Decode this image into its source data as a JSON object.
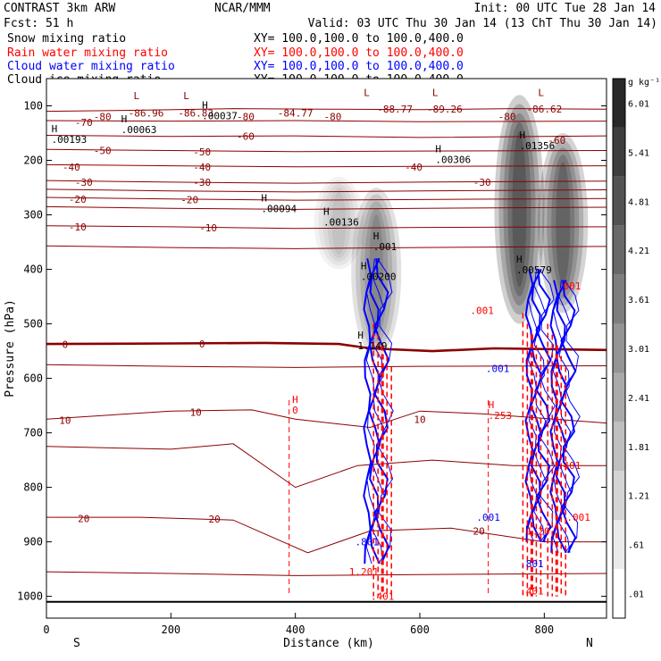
{
  "chart_data": {
    "type": "contour-cross-section",
    "header": {
      "model": "CONTRAST  3km ARW",
      "fcst": "Fcst:   51 h",
      "center": "NCAR/MMM",
      "init": "Init: 00 UTC Tue 28 Jan 14",
      "valid": "Valid: 03 UTC Thu 30 Jan 14 (13 ChT Thu 30 Jan 14)"
    },
    "fields": [
      {
        "name": "Snow mixing ratio",
        "color": "#000000",
        "xy": "XY= 100.0,100.0 to 100.0,400.0"
      },
      {
        "name": "Rain water mixing ratio",
        "color": "#ff0000",
        "xy": "XY= 100.0,100.0 to 100.0,400.0"
      },
      {
        "name": "Cloud water mixing ratio",
        "color": "#0000ff",
        "xy": "XY= 100.0,100.0 to 100.0,400.0"
      },
      {
        "name": "Cloud ice mixing ratio",
        "color": "#000000",
        "xy": "XY= 100.0,100.0 to 100.0,400.0"
      }
    ],
    "xlabel": "Distance (km)",
    "ylabel": "Pressure (hPa)",
    "xlim": [
      0,
      900
    ],
    "ylim": [
      50,
      1040
    ],
    "x_ticks": [
      0,
      200,
      400,
      600,
      800
    ],
    "y_ticks": [
      100,
      200,
      300,
      400,
      500,
      600,
      700,
      800,
      900,
      1000
    ],
    "endpoints": {
      "left": "S",
      "right": "N"
    },
    "colorbar": {
      "units": "g kg⁻¹",
      "labels": [
        "6.01",
        "5.41",
        "4.81",
        "4.21",
        "3.61",
        "3.01",
        "2.41",
        "1.81",
        "1.21",
        ".61",
        ".01"
      ]
    },
    "temperature_contours": [
      {
        "level": -80,
        "points": [
          [
            0,
            110
          ],
          [
            150,
            108
          ],
          [
            300,
            105
          ],
          [
            450,
            106
          ],
          [
            600,
            107
          ],
          [
            750,
            105
          ],
          [
            900,
            106
          ]
        ]
      },
      {
        "level": -70,
        "points": [
          [
            0,
            127
          ],
          [
            200,
            128
          ],
          [
            400,
            127
          ],
          [
            600,
            129
          ],
          [
            900,
            128
          ]
        ]
      },
      {
        "level": -60,
        "points": [
          [
            0,
            154
          ],
          [
            200,
            156
          ],
          [
            400,
            155
          ],
          [
            600,
            158
          ],
          [
            900,
            155
          ]
        ]
      },
      {
        "level": -50,
        "points": [
          [
            0,
            180
          ],
          [
            200,
            182
          ],
          [
            400,
            184
          ],
          [
            600,
            183
          ],
          [
            900,
            182
          ]
        ]
      },
      {
        "level": -40,
        "points": [
          [
            0,
            208
          ],
          [
            200,
            210
          ],
          [
            400,
            212
          ],
          [
            600,
            211
          ],
          [
            900,
            210
          ]
        ]
      },
      {
        "level": -30,
        "points": [
          [
            0,
            237
          ],
          [
            200,
            240
          ],
          [
            400,
            242
          ],
          [
            600,
            240
          ],
          [
            900,
            238
          ]
        ]
      },
      {
        "level": -25,
        "points": [
          [
            0,
            253
          ],
          [
            200,
            256
          ],
          [
            400,
            258
          ],
          [
            600,
            256
          ],
          [
            900,
            254
          ]
        ]
      },
      {
        "level": -20,
        "points": [
          [
            0,
            268
          ],
          [
            200,
            271
          ],
          [
            400,
            273
          ],
          [
            600,
            272
          ],
          [
            900,
            270
          ]
        ]
      },
      {
        "level": -15,
        "points": [
          [
            0,
            285
          ],
          [
            200,
            288
          ],
          [
            400,
            290
          ],
          [
            600,
            288
          ],
          [
            900,
            286
          ]
        ]
      },
      {
        "level": -10,
        "points": [
          [
            0,
            320
          ],
          [
            200,
            322
          ],
          [
            400,
            325
          ],
          [
            600,
            323
          ],
          [
            900,
            322
          ]
        ]
      },
      {
        "level": -5,
        "points": [
          [
            0,
            357
          ],
          [
            200,
            360
          ],
          [
            400,
            362
          ],
          [
            600,
            360
          ],
          [
            900,
            358
          ]
        ]
      },
      {
        "level": 0,
        "points": [
          [
            0,
            537
          ],
          [
            200,
            536
          ],
          [
            350,
            535
          ],
          [
            470,
            537
          ],
          [
            520,
            545
          ],
          [
            620,
            550
          ],
          [
            720,
            545
          ],
          [
            900,
            548
          ]
        ]
      },
      {
        "level": 5,
        "points": [
          [
            0,
            575
          ],
          [
            200,
            578
          ],
          [
            400,
            580
          ],
          [
            600,
            578
          ],
          [
            900,
            577
          ]
        ]
      },
      {
        "level": 10,
        "points": [
          [
            0,
            675
          ],
          [
            200,
            660
          ],
          [
            330,
            658
          ],
          [
            400,
            675
          ],
          [
            520,
            690
          ],
          [
            600,
            660
          ],
          [
            700,
            665
          ],
          [
            900,
            682
          ]
        ]
      },
      {
        "level": 15,
        "points": [
          [
            0,
            725
          ],
          [
            200,
            730
          ],
          [
            300,
            720
          ],
          [
            400,
            800
          ],
          [
            500,
            760
          ],
          [
            620,
            750
          ],
          [
            750,
            760
          ],
          [
            900,
            760
          ]
        ]
      },
      {
        "level": 20,
        "points": [
          [
            0,
            855
          ],
          [
            150,
            855
          ],
          [
            300,
            860
          ],
          [
            420,
            920
          ],
          [
            520,
            880
          ],
          [
            650,
            875
          ],
          [
            800,
            900
          ],
          [
            900,
            900
          ]
        ]
      },
      {
        "level": 25,
        "points": [
          [
            0,
            955
          ],
          [
            200,
            958
          ],
          [
            400,
            962
          ],
          [
            600,
            960
          ],
          [
            900,
            958
          ]
        ]
      }
    ],
    "annotations": [
      {
        "text": "-86.96",
        "x": 160,
        "p": 113
      },
      {
        "text": "-86.83",
        "x": 240,
        "p": 113
      },
      {
        "text": "-84.77",
        "x": 400,
        "p": 113
      },
      {
        "text": "-88.77",
        "x": 560,
        "p": 106
      },
      {
        "text": "-89.26",
        "x": 640,
        "p": 106
      },
      {
        "text": "-86.62",
        "x": 800,
        "p": 106
      },
      {
        "text": "-80",
        "x": 90,
        "p": 120
      },
      {
        "text": "-80",
        "x": 320,
        "p": 120
      },
      {
        "text": "-80",
        "x": 460,
        "p": 120
      },
      {
        "text": "-80",
        "x": 740,
        "p": 120
      },
      {
        "text": "-70",
        "x": 60,
        "p": 130
      },
      {
        "text": "-60",
        "x": 320,
        "p": 156
      },
      {
        "text": "-60",
        "x": 820,
        "p": 163
      },
      {
        "text": "-50",
        "x": 90,
        "p": 182
      },
      {
        "text": "-50",
        "x": 250,
        "p": 184
      },
      {
        "text": "-40",
        "x": 40,
        "p": 212
      },
      {
        "text": "-40",
        "x": 250,
        "p": 212
      },
      {
        "text": "-40",
        "x": 590,
        "p": 212
      },
      {
        "text": "-30",
        "x": 60,
        "p": 240
      },
      {
        "text": "-30",
        "x": 250,
        "p": 240
      },
      {
        "text": "-30",
        "x": 700,
        "p": 240
      },
      {
        "text": "-20",
        "x": 50,
        "p": 271
      },
      {
        "text": "-20",
        "x": 230,
        "p": 272
      },
      {
        "text": "-10",
        "x": 50,
        "p": 322
      },
      {
        "text": "-10",
        "x": 260,
        "p": 324
      },
      {
        "text": "0",
        "x": 30,
        "p": 538
      },
      {
        "text": "0",
        "x": 250,
        "p": 537
      },
      {
        "text": "10",
        "x": 30,
        "p": 677
      },
      {
        "text": "10",
        "x": 240,
        "p": 662
      },
      {
        "text": "10",
        "x": 600,
        "p": 675
      },
      {
        "text": "20",
        "x": 60,
        "p": 857
      },
      {
        "text": "20",
        "x": 270,
        "p": 858
      },
      {
        "text": "20",
        "x": 695,
        "p": 880
      }
    ],
    "extrema": [
      {
        "type": "L",
        "x": 140,
        "p": 88
      },
      {
        "type": "L",
        "x": 220,
        "p": 88
      },
      {
        "type": "L",
        "x": 510,
        "p": 82
      },
      {
        "type": "L",
        "x": 620,
        "p": 82
      },
      {
        "type": "L",
        "x": 790,
        "p": 82
      },
      {
        "type": "H",
        "value": ".00193",
        "x": 8,
        "p": 148
      },
      {
        "type": "H",
        "value": ".00063",
        "x": 120,
        "p": 130
      },
      {
        "type": "H",
        "value": ".00037",
        "x": 250,
        "p": 105
      },
      {
        "type": "H",
        "value": ".00094",
        "x": 345,
        "p": 275
      },
      {
        "type": "H",
        "value": ".00136",
        "x": 445,
        "p": 300
      },
      {
        "type": "H",
        "value": ".00306",
        "x": 625,
        "p": 185
      },
      {
        "type": "H",
        "value": ".01356",
        "x": 760,
        "p": 160
      },
      {
        "type": "H",
        "value": ".00579",
        "x": 755,
        "p": 388
      },
      {
        "type": "H",
        "value": ".001",
        "x": 525,
        "p": 345
      },
      {
        "type": "H",
        "value": ".00200",
        "x": 505,
        "p": 400
      },
      {
        "type": "H",
        "value": "1.149",
        "x": 500,
        "p": 527
      },
      {
        "type": "H",
        "value": ".253",
        "x": 710,
        "p": 655
      },
      {
        "type": "H",
        "value": "0",
        "x": 395,
        "p": 645
      }
    ],
    "value_labels": [
      {
        "text": ".001",
        "x": 725,
        "p": 582
      },
      {
        "text": ".001",
        "x": 700,
        "p": 475
      },
      {
        "text": ".001",
        "x": 840,
        "p": 430
      },
      {
        "text": ".801",
        "x": 515,
        "p": 900
      },
      {
        "text": "1.201",
        "x": 510,
        "p": 955
      },
      {
        "text": ".401",
        "x": 540,
        "p": 1000
      },
      {
        "text": ".801",
        "x": 780,
        "p": 940
      },
      {
        "text": ".401",
        "x": 780,
        "p": 990
      },
      {
        "text": ".401",
        "x": 840,
        "p": 760
      },
      {
        "text": ".001",
        "x": 710,
        "p": 855
      },
      {
        "text": ".001",
        "x": 855,
        "p": 855
      },
      {
        "text": "1.20",
        "x": 790,
        "p": 880
      }
    ],
    "snow_columns": [
      {
        "x": 530,
        "p_top": 250,
        "p_bot": 560,
        "peak": 3.5
      },
      {
        "x": 760,
        "p_top": 80,
        "p_bot": 500,
        "peak": 6.0
      },
      {
        "x": 830,
        "p_top": 150,
        "p_bot": 480,
        "peak": 5.0
      },
      {
        "x": 470,
        "p_top": 230,
        "p_bot": 400,
        "peak": 1.5
      }
    ],
    "rain_columns": [
      {
        "x": 540,
        "p_top": 500,
        "p_bot": 1000
      },
      {
        "x": 780,
        "p_top": 480,
        "p_bot": 1000
      },
      {
        "x": 820,
        "p_top": 500,
        "p_bot": 1000
      }
    ],
    "cloud_columns": [
      {
        "x": 530,
        "p_top": 380,
        "p_bot": 940
      },
      {
        "x": 790,
        "p_top": 400,
        "p_bot": 900
      },
      {
        "x": 830,
        "p_top": 420,
        "p_bot": 920
      }
    ]
  }
}
